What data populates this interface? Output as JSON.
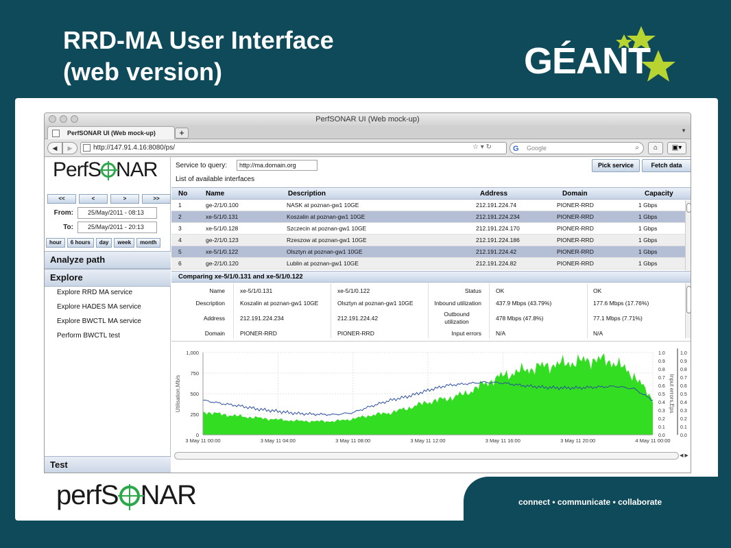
{
  "slide": {
    "title_line1": "RRD-MA User Interface",
    "title_line2": "(web version)",
    "brand_logo": "GÉANT",
    "footer_logo_pre": "perfS",
    "footer_logo_post": "NAR",
    "tagline": "connect • communicate • collaborate"
  },
  "browser": {
    "window_title": "PerfSONAR UI (Web mock-up)",
    "tab_label": "PerfSONAR UI (Web mock-up)",
    "tab_add": "+",
    "url": "http://147.91.4.16:8080/ps/",
    "search_placeholder": "Google"
  },
  "app": {
    "logo_pre": "PerfS",
    "logo_post": "NAR",
    "nav_buttons": [
      "<<",
      "<",
      ">",
      ">>"
    ],
    "from_label": "From:",
    "from_value": "25/May/2011 - 08:13",
    "to_label": "To:",
    "to_value": "25/May/2011 - 20:13",
    "range_buttons": [
      "hour",
      "6 hours",
      "day",
      "week",
      "month"
    ],
    "analyze_path": "Analyze path",
    "explore": "Explore",
    "explore_items": [
      "Explore RRD MA service",
      "Explore HADES MA service",
      "Explore BWCTL MA service",
      "Perform BWCTL test"
    ],
    "test": "Test",
    "service_label": "Service to query:",
    "service_value": "http://ma.domain.org",
    "pick_service": "Pick service",
    "fetch_data": "Fetch data",
    "list_title": "List of available interfaces",
    "table": {
      "headers": [
        "No",
        "Name",
        "Description",
        "Address",
        "Domain",
        "Capacity"
      ],
      "rows": [
        [
          "1",
          "ge-2/1/0.100",
          "NASK at poznan-gw1 10GE",
          "212.191.224.74",
          "PIONER-RRD",
          "1 Gbps"
        ],
        [
          "2",
          "xe-5/1/0.131",
          "Koszalin at poznan-gw1 10GE",
          "212.191.224.234",
          "PIONER-RRD",
          "1 Gbps"
        ],
        [
          "3",
          "xe-5/1/0.128",
          "Szczecin at poznan-gw1 10GE",
          "212.191.224.170",
          "PIONER-RRD",
          "1 Gbps"
        ],
        [
          "4",
          "ge-2/1/0.123",
          "Rzeszow at poznan-gw1 10GE",
          "212.191.224.186",
          "PIONER-RRD",
          "1 Gbps"
        ],
        [
          "5",
          "xe-5/1/0.122",
          "Olsztyn at poznan-gw1 10GE",
          "212.191.224.42",
          "PIONER-RRD",
          "1 Gbps"
        ],
        [
          "6",
          "ge-2/1/0.120",
          "Lublin at poznan-gw1 10GE",
          "212.191.224.82",
          "PIONER-RRD",
          "1 Gbps"
        ]
      ],
      "selected_rows": [
        2,
        5
      ]
    },
    "compare": {
      "title": "Comparing xe-5/1/0.131 and xe-5/1/0.122",
      "left_labels": [
        "Name",
        "Description",
        "Address",
        "Domain"
      ],
      "a_values": [
        "xe-5/1/0.131",
        "Koszalin at poznan-gw1 10GE",
        "212.191.224.234",
        "PIONER-RRD"
      ],
      "b_values": [
        "xe-5/1/0.122",
        "Olsztyn at poznan-gw1 10GE",
        "212.191.224.42",
        "PIONER-RRD"
      ],
      "right_labels": [
        "Status",
        "Inbound utilization",
        "Outbound utilization",
        "Input errors"
      ],
      "c_values": [
        "OK",
        "437.9 Mbps (43.79%)",
        "478 Mbps (47.8%)",
        "N/A"
      ],
      "d_values": [
        "OK",
        "177.6 Mbps (17.76%)",
        "77.1 Mbps (7.71%)",
        "N/A"
      ]
    }
  },
  "chart_data": {
    "type": "area",
    "ylabel": "Utilisation,Mb/s",
    "y2label": "Input errors,Eps",
    "ylim": [
      0,
      1000
    ],
    "y2lim": [
      0,
      1.0
    ],
    "y_ticks": [
      "0",
      "250",
      "500",
      "750",
      "1,000"
    ],
    "y2_ticks": [
      "0.0",
      "0.1",
      "0.2",
      "0.3",
      "0.4",
      "0.5",
      "0.6",
      "0.7",
      "0.8",
      "0.9",
      "1.0"
    ],
    "x_ticks": [
      "3 May 11 00:00",
      "3 May 11 04:00",
      "3 May 11 08:00",
      "3 May 11 12:00",
      "3 May 11 16:00",
      "3 May 11 20:00",
      "4 May 11 00:00"
    ],
    "x_hours": [
      0,
      1,
      2,
      3,
      4,
      5,
      6,
      7,
      8,
      9,
      10,
      11,
      12,
      13,
      14,
      15,
      16,
      17,
      18,
      19,
      20,
      21,
      22,
      23,
      24
    ],
    "series": [
      {
        "values": [
          280,
          250,
          225,
          205,
          185,
          170,
          165,
          165,
          195,
          240,
          270,
          330,
          400,
          440,
          500,
          620,
          720,
          780,
          830,
          860,
          890,
          920,
          880,
          720,
          430
        ],
        "color": "#33dd22"
      },
      {
        "values": [
          420,
          380,
          350,
          310,
          285,
          260,
          250,
          245,
          270,
          350,
          420,
          470,
          540,
          600,
          620,
          640,
          630,
          600,
          580,
          570,
          570,
          580,
          590,
          560,
          420
        ],
        "color": "#2a4fa0"
      }
    ]
  }
}
